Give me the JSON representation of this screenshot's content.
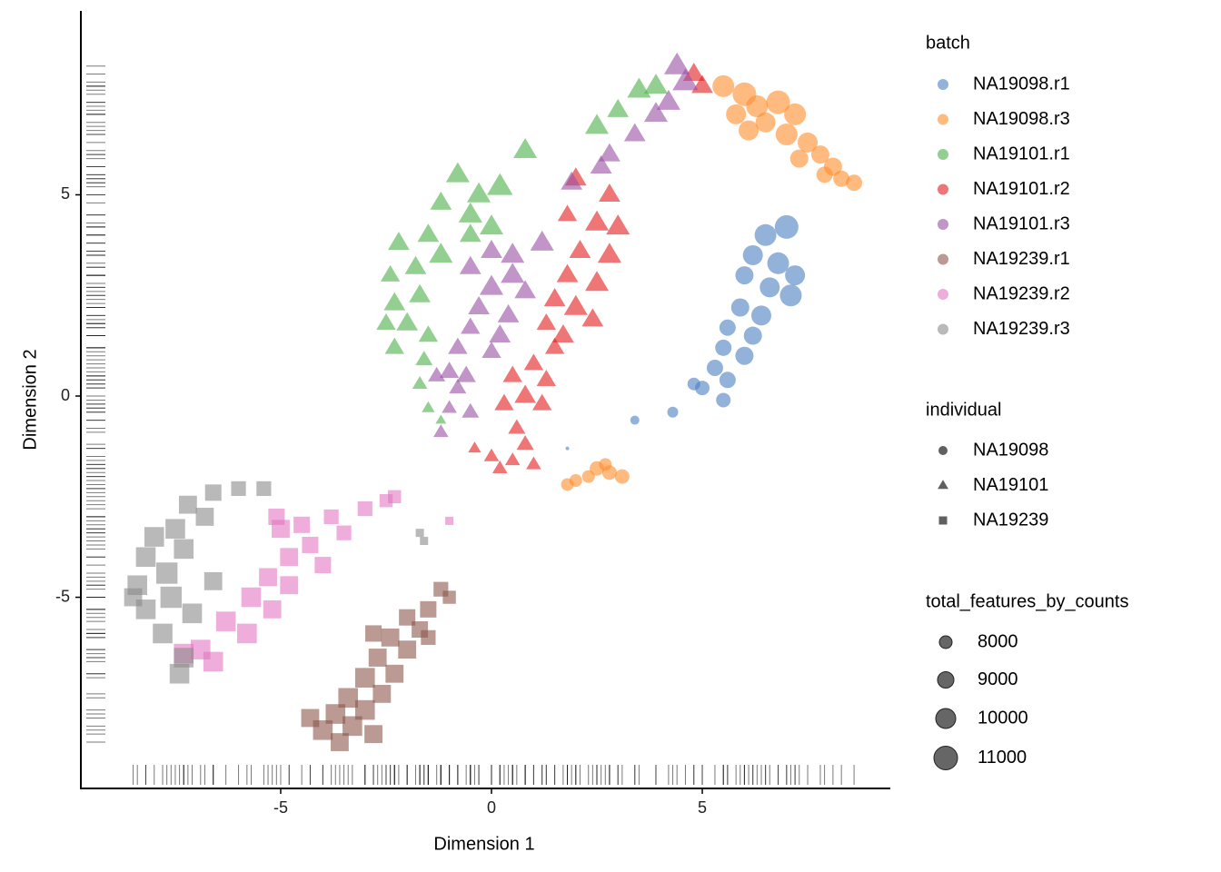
{
  "chart_data": {
    "type": "scatter",
    "x_label": "Dimension 1",
    "y_label": "Dimension 2",
    "xlim": [
      -9.74,
      9.46
    ],
    "ylim": [
      -9.75,
      9.57
    ],
    "xticks": [
      -5,
      0,
      5
    ],
    "yticks": [
      -5,
      0,
      5
    ],
    "rug": true,
    "opacity": 0.6,
    "legend_title": "batch",
    "shape_legend": {
      "title": "individual",
      "items": [
        {
          "name": "NA19098",
          "shape": "circle"
        },
        {
          "name": "NA19101",
          "shape": "triangle"
        },
        {
          "name": "NA19239",
          "shape": "square"
        }
      ]
    },
    "size_legend": {
      "title": "total_features_by_counts",
      "values": [
        8000,
        9000,
        10000,
        11000
      ]
    },
    "series": [
      {
        "name": "NA19098.r1",
        "color": "#4a7fc1",
        "shape": "circle",
        "x": [
          6.5,
          7.0,
          6.2,
          6.8,
          7.2,
          6.0,
          6.6,
          7.1,
          5.9,
          6.4,
          5.6,
          6.2,
          5.5,
          6.0,
          5.3,
          5.6,
          5.0,
          4.8,
          5.5,
          4.3,
          3.4,
          1.8
        ],
        "y": [
          4.0,
          4.2,
          3.5,
          3.3,
          3.0,
          3.0,
          2.7,
          2.5,
          2.2,
          2.0,
          1.7,
          1.5,
          1.2,
          1.0,
          0.7,
          0.4,
          0.2,
          0.3,
          -0.1,
          -0.4,
          -0.6,
          -1.3
        ],
        "size": [
          10500,
          11000,
          10000,
          10500,
          10000,
          9500,
          10000,
          10500,
          9500,
          10000,
          9000,
          9500,
          9000,
          9500,
          9000,
          9000,
          8500,
          8000,
          8500,
          7500,
          7000,
          5500
        ]
      },
      {
        "name": "NA19098.r3",
        "color": "#ff8c2a",
        "shape": "circle",
        "x": [
          5.5,
          6.0,
          6.3,
          6.8,
          7.2,
          6.5,
          7.0,
          6.1,
          7.5,
          7.8,
          7.3,
          8.1,
          8.3,
          8.6,
          7.9,
          5.8,
          2.8,
          2.5,
          2.0,
          1.8,
          2.3,
          3.1,
          2.7
        ],
        "y": [
          7.7,
          7.5,
          7.2,
          7.3,
          7.0,
          6.8,
          6.5,
          6.6,
          6.3,
          6.0,
          5.9,
          5.7,
          5.4,
          5.3,
          5.5,
          7.0,
          -1.9,
          -1.8,
          -2.1,
          -2.2,
          -2.0,
          -2.0,
          -1.7
        ],
        "size": [
          10500,
          11000,
          10500,
          11000,
          10500,
          10000,
          10500,
          10000,
          10000,
          9500,
          9500,
          9500,
          9000,
          9000,
          9000,
          10000,
          8500,
          8500,
          8000,
          8000,
          8000,
          8500,
          8000
        ]
      },
      {
        "name": "NA19101.r1",
        "color": "#4daf4a",
        "shape": "triangle",
        "x": [
          -0.3,
          0.2,
          -0.8,
          -1.2,
          -0.5,
          0.0,
          -1.5,
          -2.2,
          -1.8,
          -1.2,
          -2.4,
          -2.3,
          -1.7,
          -2.0,
          -1.5,
          -2.5,
          -2.3,
          -1.6,
          -1.7,
          -1.5,
          -1.2,
          0.8,
          2.5,
          3.0,
          3.5,
          3.9,
          -0.5
        ],
        "y": [
          5.0,
          5.2,
          5.5,
          4.8,
          4.5,
          4.2,
          4.0,
          3.8,
          3.2,
          3.5,
          3.0,
          2.3,
          2.5,
          1.8,
          1.5,
          1.8,
          1.2,
          0.9,
          0.3,
          -0.3,
          -0.6,
          6.1,
          6.7,
          7.1,
          7.6,
          7.7,
          4.0
        ],
        "size": [
          10000,
          10500,
          10000,
          9500,
          10000,
          10000,
          9500,
          9500,
          9500,
          10000,
          9000,
          9500,
          9500,
          9500,
          9000,
          9000,
          9000,
          8500,
          8000,
          7500,
          7000,
          10000,
          10000,
          9500,
          10000,
          10000,
          9500
        ]
      },
      {
        "name": "NA19101.r2",
        "color": "#e41a1c",
        "shape": "triangle",
        "x": [
          2.5,
          3.0,
          2.8,
          2.1,
          1.8,
          2.5,
          2.0,
          1.5,
          2.4,
          1.7,
          1.3,
          1.5,
          1.0,
          0.5,
          1.3,
          0.8,
          0.3,
          1.2,
          0.6,
          0.8,
          0.5,
          1.0,
          0.2,
          0.0,
          -0.4,
          2.0,
          2.8,
          1.8,
          5.0,
          4.8
        ],
        "y": [
          4.3,
          4.2,
          3.5,
          3.6,
          3.0,
          2.8,
          2.2,
          2.4,
          1.9,
          1.5,
          1.8,
          1.2,
          0.8,
          0.5,
          0.4,
          0.0,
          -0.2,
          -0.2,
          -0.8,
          -1.2,
          -1.6,
          -1.7,
          -1.8,
          -1.5,
          -1.3,
          5.4,
          5.0,
          4.5,
          7.7,
          8.0
        ],
        "size": [
          10000,
          10000,
          10000,
          9500,
          9500,
          10000,
          10000,
          9500,
          9500,
          9500,
          9000,
          9000,
          9000,
          9000,
          9000,
          9500,
          9000,
          9000,
          8500,
          8500,
          8000,
          8000,
          8000,
          8000,
          7500,
          9500,
          9500,
          9000,
          9500,
          9500
        ]
      },
      {
        "name": "NA19101.r3",
        "color": "#984ea3",
        "shape": "triangle",
        "x": [
          0.5,
          1.2,
          0.0,
          -0.5,
          0.5,
          0.0,
          0.8,
          -0.3,
          0.4,
          -0.5,
          0.2,
          -0.8,
          0.0,
          -1.0,
          -0.6,
          -1.3,
          -0.8,
          -0.5,
          -1.0,
          -1.2,
          2.8,
          2.6,
          4.2,
          4.6,
          4.4,
          3.9,
          3.4,
          1.9
        ],
        "y": [
          3.5,
          3.8,
          3.6,
          3.2,
          3.0,
          2.7,
          2.6,
          2.2,
          2.0,
          1.7,
          1.5,
          1.2,
          1.1,
          0.6,
          0.5,
          0.5,
          0.2,
          -0.4,
          -0.3,
          -0.9,
          6.0,
          5.7,
          7.3,
          7.8,
          8.2,
          7.0,
          6.5,
          5.3
        ],
        "size": [
          10000,
          10000,
          9500,
          9500,
          10000,
          10000,
          9500,
          9500,
          9500,
          9000,
          9500,
          9000,
          9000,
          9000,
          9000,
          8500,
          8500,
          8500,
          8000,
          8000,
          9500,
          9500,
          10000,
          10500,
          10500,
          10000,
          9500,
          9500
        ]
      },
      {
        "name": "NA19239.r1",
        "color": "#8c564b",
        "shape": "square",
        "x": [
          -1.2,
          -1.0,
          -1.5,
          -2.0,
          -1.7,
          -2.4,
          -2.0,
          -2.7,
          -2.3,
          -3.0,
          -2.6,
          -3.4,
          -3.0,
          -3.7,
          -3.3,
          -4.0,
          -3.6,
          -4.3,
          -2.8,
          -1.5,
          -2.8
        ],
        "y": [
          -4.8,
          -5.0,
          -5.3,
          -5.5,
          -5.8,
          -6.0,
          -6.3,
          -6.5,
          -6.9,
          -7.0,
          -7.4,
          -7.5,
          -7.8,
          -7.9,
          -8.2,
          -8.3,
          -8.6,
          -8.0,
          -8.4,
          -6.0,
          -5.9
        ],
        "size": [
          9000,
          8500,
          9500,
          9500,
          9500,
          10000,
          10000,
          10000,
          10000,
          10500,
          10000,
          10500,
          10500,
          10500,
          10500,
          10500,
          10000,
          10000,
          10000,
          9000,
          9500
        ]
      },
      {
        "name": "NA19239.r2",
        "color": "#e377c2",
        "shape": "square",
        "x": [
          -5.0,
          -4.5,
          -3.8,
          -3.0,
          -2.5,
          -2.3,
          -4.8,
          -4.3,
          -5.3,
          -4.8,
          -5.7,
          -5.2,
          -6.3,
          -5.8,
          -6.9,
          -7.3,
          -6.6,
          -3.5,
          -4.0,
          -1.0,
          -5.1
        ],
        "y": [
          -3.3,
          -3.2,
          -3.0,
          -2.8,
          -2.6,
          -2.5,
          -4.0,
          -3.7,
          -4.5,
          -4.7,
          -5.0,
          -5.3,
          -5.6,
          -5.9,
          -6.3,
          -6.4,
          -6.6,
          -3.4,
          -4.2,
          -3.1,
          -3.0
        ],
        "size": [
          10000,
          9500,
          9000,
          9000,
          8500,
          8500,
          10000,
          9500,
          10000,
          10000,
          10500,
          10000,
          10500,
          10500,
          10500,
          10500,
          10500,
          9000,
          9500,
          7000,
          9500
        ]
      },
      {
        "name": "NA19239.r3",
        "color": "#8a8a8a",
        "shape": "square",
        "x": [
          -6.0,
          -6.6,
          -7.2,
          -6.8,
          -7.5,
          -8.0,
          -7.3,
          -8.2,
          -7.7,
          -8.4,
          -7.6,
          -8.2,
          -7.1,
          -8.5,
          -7.8,
          -7.3,
          -7.4,
          -6.6,
          -5.4,
          -1.7,
          -1.6
        ],
        "y": [
          -2.3,
          -2.4,
          -2.7,
          -3.0,
          -3.3,
          -3.5,
          -3.8,
          -4.0,
          -4.4,
          -4.7,
          -5.0,
          -5.3,
          -5.4,
          -5.0,
          -5.9,
          -6.5,
          -6.9,
          -4.6,
          -2.3,
          -3.4,
          -3.6
        ],
        "size": [
          9000,
          9500,
          10000,
          10000,
          10500,
          10500,
          10500,
          10500,
          11000,
          10500,
          11000,
          10500,
          10500,
          10000,
          10500,
          10500,
          10500,
          10000,
          9000,
          7000,
          7000
        ]
      }
    ]
  }
}
